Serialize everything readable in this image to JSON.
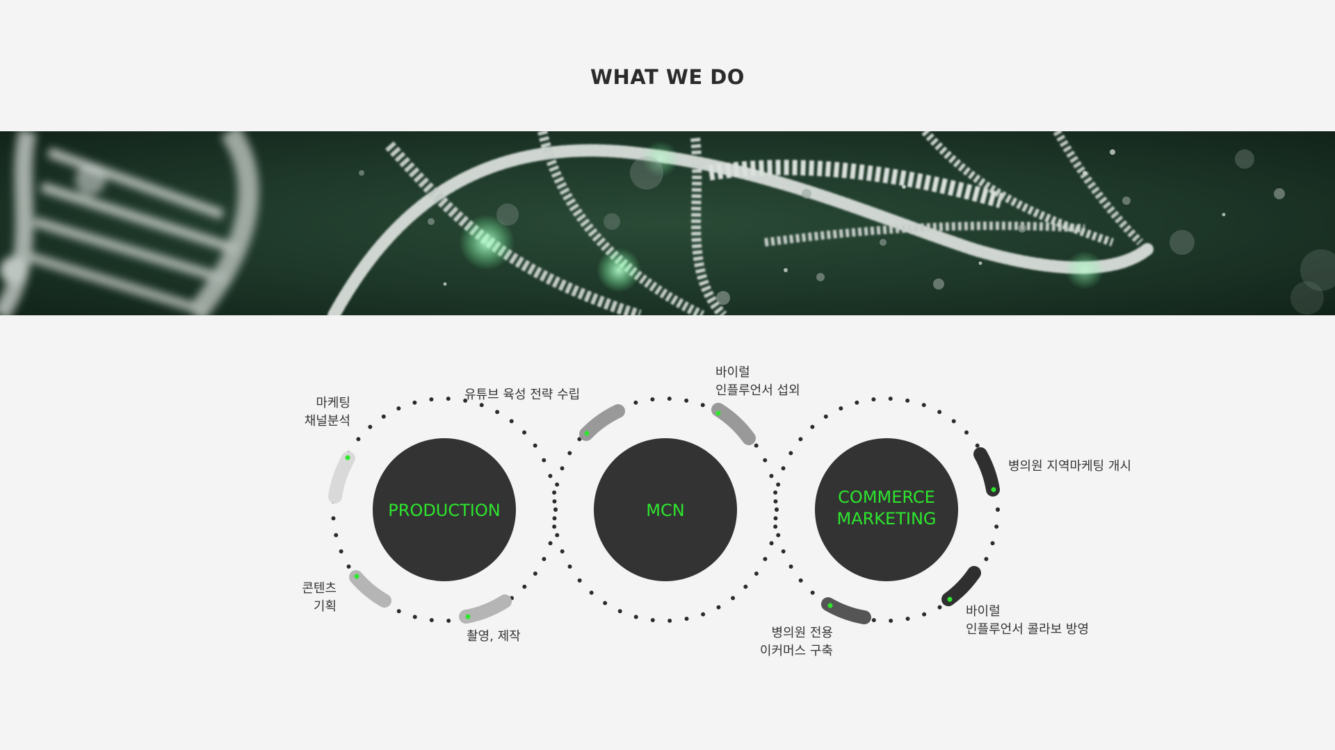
{
  "section": {
    "title": "WHAT WE DO"
  },
  "banner": {
    "icon": "dna-helix-image"
  },
  "colors": {
    "background": "#f4f4f4",
    "circle": "#333333",
    "accent": "#2ee62e",
    "dots": "#2b2b2b",
    "arc_light": "#d6d6d6",
    "arc_mid": "#b5b5b5",
    "arc_gray": "#999999",
    "arc_dark": "#555555",
    "arc_darkest": "#2f2f2f"
  },
  "services": [
    {
      "line1": "PRODUCTION",
      "line2": ""
    },
    {
      "line1": "MCN",
      "line2": ""
    },
    {
      "line1": "COMMERCE",
      "line2": "MARKETING"
    }
  ],
  "labels": {
    "production_channel": "마케팅\n채널분석",
    "production_content": "콘텐츠\n기획",
    "production_shoot": "촬영, 제작",
    "mcn_youtube": "유튜브 육성 전략 수립",
    "mcn_influencer": "바이럴\n인플루언서 섭외",
    "commerce_local": "병의원 지역마케팅 개시",
    "commerce_collab": "바이럴\n인플루언서 콜라보 방영",
    "commerce_ecommerce": "병의원 전용\n이커머스 구축"
  }
}
